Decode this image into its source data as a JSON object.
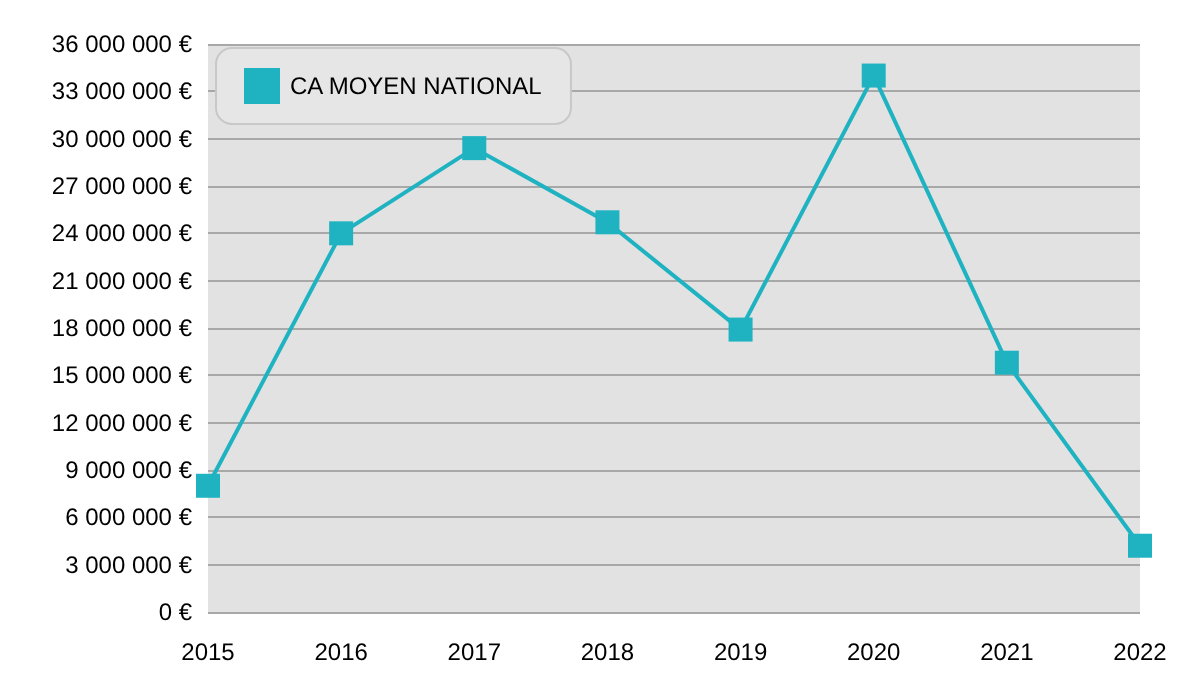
{
  "chart_data": {
    "type": "line",
    "categories": [
      "2015",
      "2016",
      "2017",
      "2018",
      "2019",
      "2020",
      "2021",
      "2022"
    ],
    "series": [
      {
        "name": "CA MOYEN NATIONAL",
        "color": "#1fb3c2",
        "values": [
          8000000,
          24000000,
          29400000,
          24700000,
          17900000,
          34000000,
          15800000,
          4200000
        ]
      }
    ],
    "ylim": [
      0,
      36000000
    ],
    "yticks": [
      {
        "value": 0,
        "label": "0 €"
      },
      {
        "value": 3000000,
        "label": "3 000 000 €"
      },
      {
        "value": 6000000,
        "label": "6 000 000 €"
      },
      {
        "value": 9000000,
        "label": "9 000 000 €"
      },
      {
        "value": 12000000,
        "label": "12 000 000 €"
      },
      {
        "value": 15000000,
        "label": "15 000 000 €"
      },
      {
        "value": 18000000,
        "label": "18 000 000 €"
      },
      {
        "value": 21000000,
        "label": "21 000 000 €"
      },
      {
        "value": 24000000,
        "label": "24 000 000 €"
      },
      {
        "value": 27000000,
        "label": "27 000 000 €"
      },
      {
        "value": 30000000,
        "label": "30 000 000 €"
      },
      {
        "value": 33000000,
        "label": "33 000 000 €"
      },
      {
        "value": 36000000,
        "label": "36 000 000 €"
      }
    ],
    "grid": "y",
    "legend": "top left",
    "marker": "square",
    "line_style": "solid"
  }
}
